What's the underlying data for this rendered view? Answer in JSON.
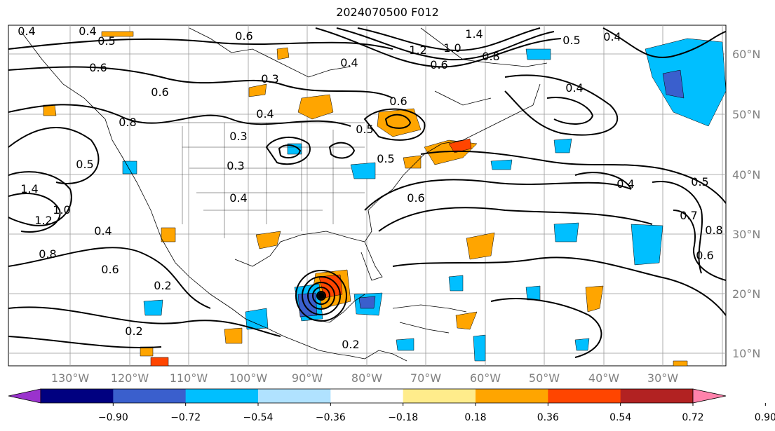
{
  "title": "2024070500 F012",
  "longitude_labels": [
    "130°W",
    "120°W",
    "110°W",
    "100°W",
    "90°W",
    "80°W",
    "70°W",
    "60°W",
    "50°W",
    "40°W",
    "30°W"
  ],
  "latitude_labels": [
    "60°N",
    "50°N",
    "40°N",
    "30°N",
    "20°N",
    "10°N"
  ],
  "contour_labels": [
    "0.4",
    "0.4",
    "0.5",
    "0.6",
    "1.4",
    "1.2",
    "1.0",
    "0.8",
    "0.6",
    "0.5",
    "0.4",
    "0.6",
    "0.3",
    "0.6",
    "0.4",
    "0.4",
    "0.6",
    "0.8",
    "0.5",
    "0.3",
    "0.3",
    "0.5",
    "0.4",
    "0.4",
    "1.4",
    "1.2",
    "1.0",
    "0.8",
    "0.4",
    "0.6",
    "0.2",
    "0.2",
    "0.4",
    "0.5",
    "0.7",
    "0.8",
    "0.6",
    "0.6",
    "0.5",
    "0.2"
  ],
  "colorbar": {
    "ticks": [
      "−0.90",
      "−0.72",
      "−0.54",
      "−0.36",
      "−0.18",
      "0.18",
      "0.36",
      "0.54",
      "0.72",
      "0.90"
    ],
    "colors": [
      "#9a32cd",
      "#000080",
      "#3a5fcd",
      "#00bfff",
      "#b0e2ff",
      "#ffffff",
      "#ffec8b",
      "#ffa500",
      "#ff4500",
      "#b22222",
      "#ff82ab"
    ]
  }
}
